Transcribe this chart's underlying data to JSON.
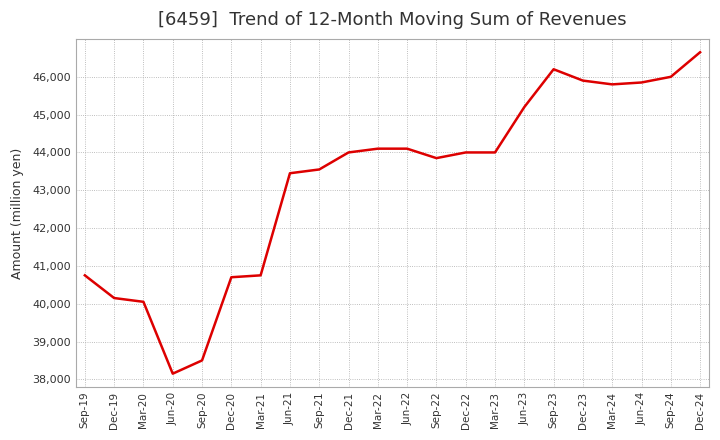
{
  "title": "[6459]  Trend of 12-Month Moving Sum of Revenues",
  "ylabel": "Amount (million yen)",
  "line_color": "#dd0000",
  "bg_color": "#ffffff",
  "plot_bg_color": "#ffffff",
  "grid_color": "#aaaaaa",
  "title_color": "#333333",
  "x_labels": [
    "Sep-19",
    "Dec-19",
    "Mar-20",
    "Jun-20",
    "Sep-20",
    "Dec-20",
    "Mar-21",
    "Jun-21",
    "Sep-21",
    "Dec-21",
    "Mar-22",
    "Jun-22",
    "Sep-22",
    "Dec-22",
    "Mar-23",
    "Jun-23",
    "Sep-23",
    "Dec-23",
    "Mar-24",
    "Jun-24",
    "Sep-24",
    "Dec-24"
  ],
  "values": [
    40750,
    40150,
    40050,
    38150,
    38500,
    40700,
    40750,
    43450,
    43550,
    44000,
    44100,
    44100,
    43850,
    44000,
    44000,
    45200,
    46200,
    45900,
    45800,
    45850,
    46000,
    46650
  ],
  "ylim": [
    37800,
    47000
  ],
  "yticks": [
    38000,
    39000,
    40000,
    41000,
    42000,
    43000,
    44000,
    45000,
    46000
  ]
}
